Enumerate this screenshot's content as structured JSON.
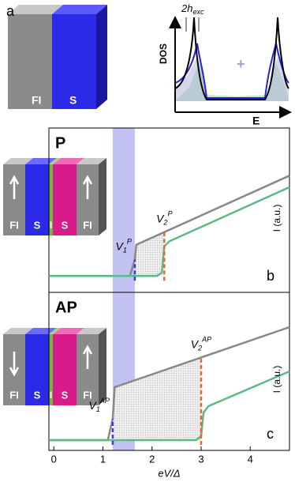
{
  "panel_a": {
    "letter": "a",
    "block_labels": [
      "FI",
      "S"
    ],
    "dos_ylabel": "DOS",
    "dos_xlabel": "E",
    "gap_label": "2h",
    "gap_sub": "exc",
    "plus": "+"
  },
  "junctions": [
    {
      "labels": [
        "FI",
        "S",
        "I",
        "S",
        "FI"
      ]
    },
    {
      "labels": [
        "FI",
        "S",
        "I",
        "S",
        "FI"
      ]
    }
  ],
  "chart_data": [
    {
      "type": "line",
      "title": "P",
      "letter": "b",
      "ylabel": "I (a.u.)",
      "xlim": [
        -0.1,
        4.8
      ],
      "ylim": [
        0,
        1
      ],
      "band": [
        1.2,
        1.65
      ],
      "band_color": "#8f8fe8",
      "series": [
        {
          "color": "#888888",
          "x": [
            -0.1,
            1.55,
            1.65,
            1.68,
            4.8
          ],
          "values": [
            0.1,
            0.1,
            0.2,
            0.29,
            0.71
          ]
        },
        {
          "color": "#5cba86",
          "x": [
            -0.1,
            2.1,
            2.2,
            2.25,
            2.35,
            4.8
          ],
          "values": [
            0.1,
            0.1,
            0.12,
            0.28,
            0.31,
            0.64
          ]
        }
      ],
      "markers": [
        {
          "label": "V",
          "sub": "1",
          "sup": "P",
          "x": 1.65,
          "color": "#3a3ae0"
        },
        {
          "label": "V",
          "sub": "2",
          "sup": "P",
          "x": 2.25,
          "color": "#e8663a"
        }
      ]
    },
    {
      "type": "line",
      "title": "AP",
      "letter": "c",
      "ylabel": "I (a.u.)",
      "xlabel": "eV/Δ",
      "xlim": [
        -0.1,
        4.8
      ],
      "ylim": [
        0,
        1
      ],
      "xticks": [
        0,
        1,
        2,
        3,
        4
      ],
      "band": [
        1.2,
        1.65
      ],
      "band_color": "#8f8fe8",
      "series": [
        {
          "color": "#888888",
          "x": [
            -0.1,
            1.1,
            1.2,
            1.24,
            4.8
          ],
          "values": [
            0.065,
            0.065,
            0.2,
            0.4,
            0.78
          ]
        },
        {
          "color": "#5cba86",
          "x": [
            -0.1,
            2.9,
            3.0,
            3.05,
            3.15,
            4.8
          ],
          "values": [
            0.065,
            0.065,
            0.09,
            0.24,
            0.28,
            0.5
          ]
        }
      ],
      "markers": [
        {
          "label": "V",
          "sub": "1",
          "sup": "AP",
          "x": 1.2,
          "color": "#3a3ae0"
        },
        {
          "label": "V",
          "sub": "2",
          "sup": "AP",
          "x": 3.0,
          "color": "#e8663a"
        }
      ]
    }
  ]
}
